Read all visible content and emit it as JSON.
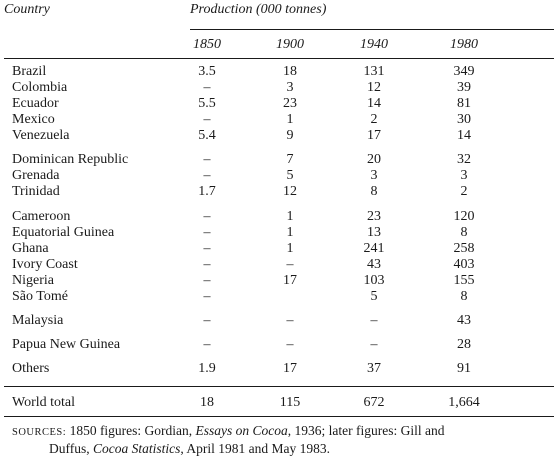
{
  "header": {
    "country_label": "Country",
    "production_label": "Production (000 tonnes)",
    "years": [
      "1850",
      "1900",
      "1940",
      "1980"
    ]
  },
  "rows": [
    {
      "country": "Brazil",
      "v1850": "3.5",
      "v1900": "18",
      "v1940": "131",
      "v1980": "349"
    },
    {
      "country": "Colombia",
      "v1850": "–",
      "v1900": "3",
      "v1940": "12",
      "v1980": "39"
    },
    {
      "country": "Ecuador",
      "v1850": "5.5",
      "v1900": "23",
      "v1940": "14",
      "v1980": "81"
    },
    {
      "country": "Mexico",
      "v1850": "–",
      "v1900": "1",
      "v1940": "2",
      "v1980": "30"
    },
    {
      "country": "Venezuela",
      "v1850": "5.4",
      "v1900": "9",
      "v1940": "17",
      "v1980": "14"
    },
    {
      "country": "Dominican Republic",
      "v1850": "–",
      "v1900": "7",
      "v1940": "20",
      "v1980": "32"
    },
    {
      "country": "Grenada",
      "v1850": "–",
      "v1900": "5",
      "v1940": "3",
      "v1980": "3"
    },
    {
      "country": "Trinidad",
      "v1850": "1.7",
      "v1900": "12",
      "v1940": "8",
      "v1980": "2"
    },
    {
      "country": "Cameroon",
      "v1850": "–",
      "v1900": "1",
      "v1940": "23",
      "v1980": "120"
    },
    {
      "country": "Equatorial Guinea",
      "v1850": "–",
      "v1900": "1",
      "v1940": "13",
      "v1980": "8"
    },
    {
      "country": "Ghana",
      "v1850": "–",
      "v1900": "1",
      "v1940": "241",
      "v1980": "258"
    },
    {
      "country": "Ivory Coast",
      "v1850": "–",
      "v1900": "–",
      "v1940": "43",
      "v1980": "403"
    },
    {
      "country": "Nigeria",
      "v1850": "–",
      "v1900": "17",
      "v1940": "103",
      "v1980": "155"
    },
    {
      "country": "São Tomé",
      "v1850": "–",
      "v1900": "",
      "v1940": "5",
      "v1980": "8"
    },
    {
      "country": "Malaysia",
      "v1850": "–",
      "v1900": "–",
      "v1940": "–",
      "v1980": "43"
    },
    {
      "country": "Papua New Guinea",
      "v1850": "–",
      "v1900": "–",
      "v1940": "–",
      "v1980": "28"
    },
    {
      "country": "Others",
      "v1850": "1.9",
      "v1900": "17",
      "v1940": "37",
      "v1980": "91"
    }
  ],
  "total": {
    "country": "World total",
    "v1850": "18",
    "v1900": "115",
    "v1940": "672",
    "v1980": "1,664"
  },
  "sources": {
    "label": "SOURCES:",
    "line1_a": " 1850 figures: Gordian, ",
    "line1_title": "Essays on Cocoa",
    "line1_b": ", 1936; later figures: Gill and",
    "line2_a": "Duffus, ",
    "line2_title": "Cocoa Statistics",
    "line2_b": ", April 1981 and May 1983."
  }
}
